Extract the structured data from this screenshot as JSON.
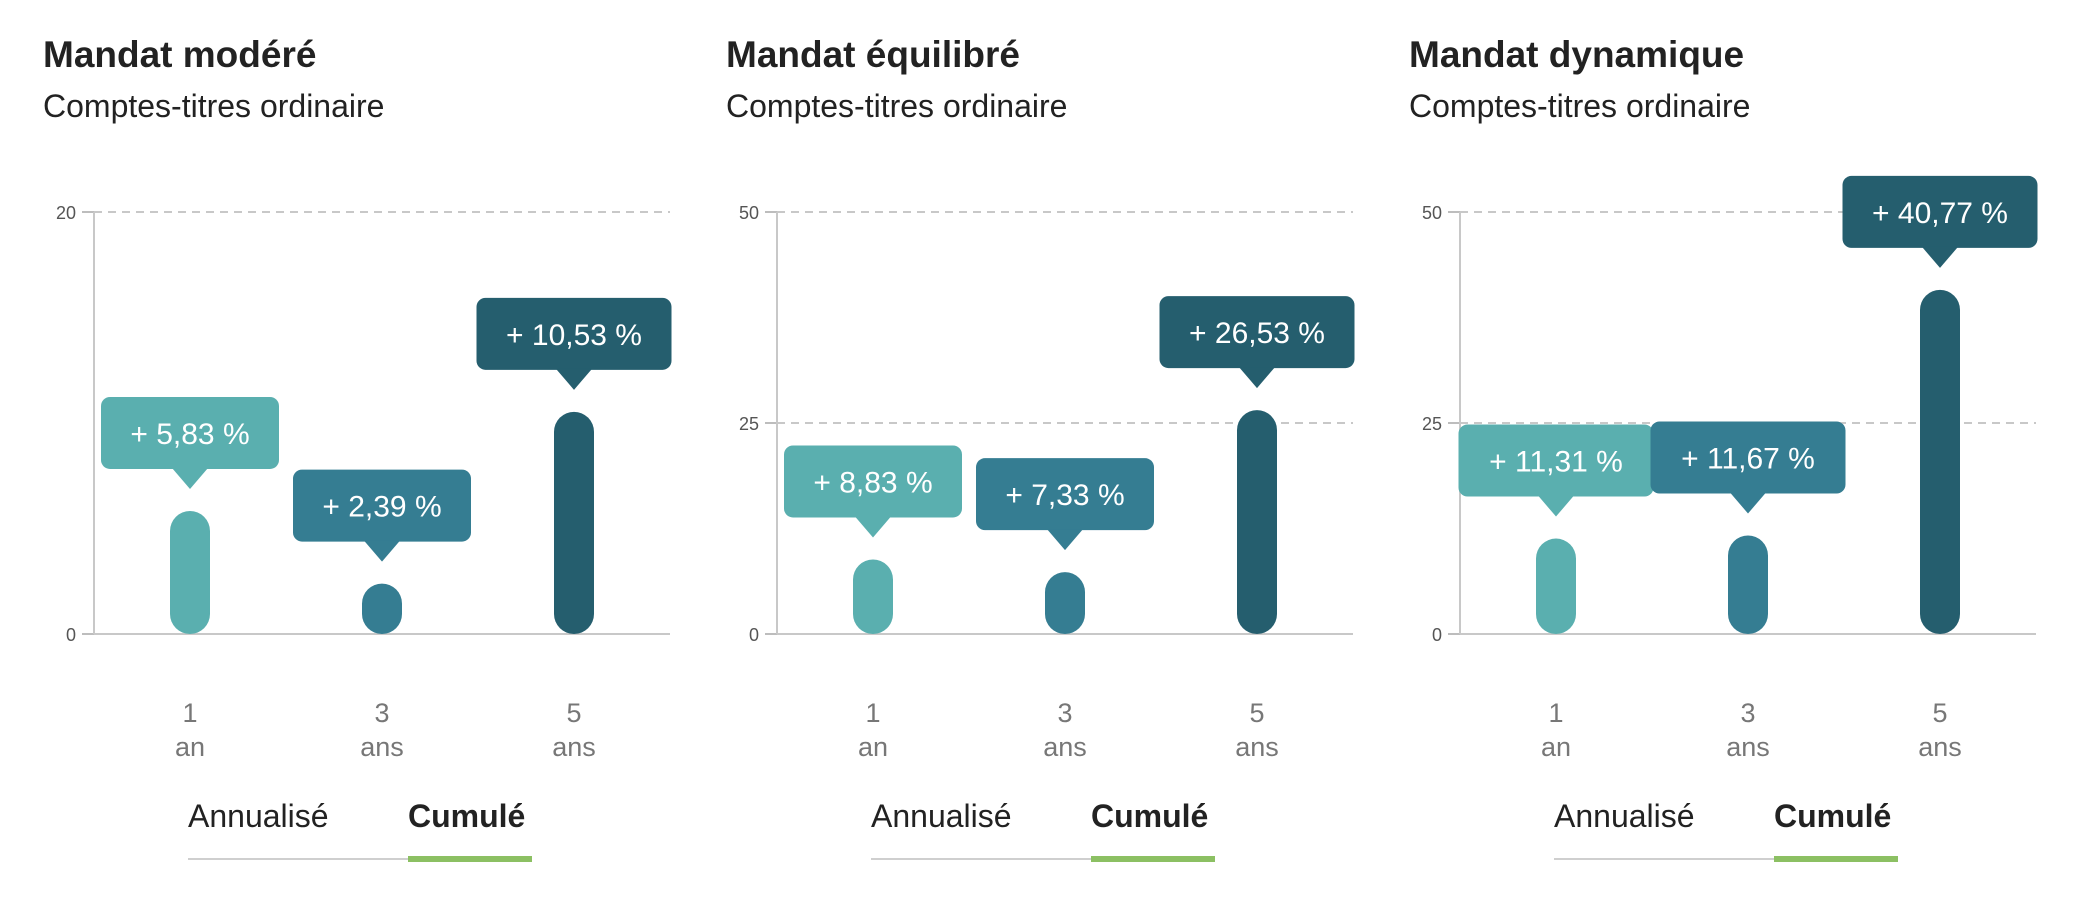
{
  "toggle_labels": {
    "annualise": "Annualisé",
    "cumule": "Cumulé"
  },
  "colors": {
    "bar_1": "#5aafaf",
    "bar_3": "#357d92",
    "bar_5": "#255e6e",
    "active_underline": "#8cc063"
  },
  "panels": [
    {
      "title": "Mandat modéré",
      "subtitle": "Comptes-titres ordinaire",
      "selected_toggle": "Cumulé"
    },
    {
      "title": "Mandat équilibré",
      "subtitle": "Comptes-titres ordinaire",
      "selected_toggle": "Cumulé"
    },
    {
      "title": "Mandat dynamique",
      "subtitle": "Comptes-titres ordinaire",
      "selected_toggle": "Cumulé"
    }
  ],
  "chart_data": [
    {
      "type": "bar",
      "title": "Mandat modéré",
      "subtitle": "Comptes-titres ordinaire",
      "categories": [
        [
          "1",
          "an"
        ],
        [
          "3",
          "ans"
        ],
        [
          "5",
          "ans"
        ]
      ],
      "values": [
        5.83,
        2.39,
        10.53
      ],
      "labels": [
        "+ 5,83 %",
        "+ 2,39 %",
        "+ 10,53 %"
      ],
      "ylim": [
        0,
        20
      ],
      "yticks": [
        0,
        20
      ],
      "grid": "dashed at top tick",
      "legend": "none"
    },
    {
      "type": "bar",
      "title": "Mandat équilibré",
      "subtitle": "Comptes-titres ordinaire",
      "categories": [
        [
          "1",
          "an"
        ],
        [
          "3",
          "ans"
        ],
        [
          "5",
          "ans"
        ]
      ],
      "values": [
        8.83,
        7.33,
        26.53
      ],
      "labels": [
        "+ 8,83 %",
        "+ 7,33 %",
        "+ 26,53 %"
      ],
      "ylim": [
        0,
        50
      ],
      "yticks": [
        0,
        25,
        50
      ],
      "grid": "dashed at 25 and 50",
      "legend": "none"
    },
    {
      "type": "bar",
      "title": "Mandat dynamique",
      "subtitle": "Comptes-titres ordinaire",
      "categories": [
        [
          "1",
          "an"
        ],
        [
          "3",
          "ans"
        ],
        [
          "5",
          "ans"
        ]
      ],
      "values": [
        11.31,
        11.67,
        40.77
      ],
      "labels": [
        "+ 11,31 %",
        "+ 11,67 %",
        "+ 40,77 %"
      ],
      "ylim": [
        0,
        50
      ],
      "yticks": [
        0,
        25,
        50
      ],
      "grid": "dashed at 25 and 50",
      "legend": "none"
    }
  ]
}
